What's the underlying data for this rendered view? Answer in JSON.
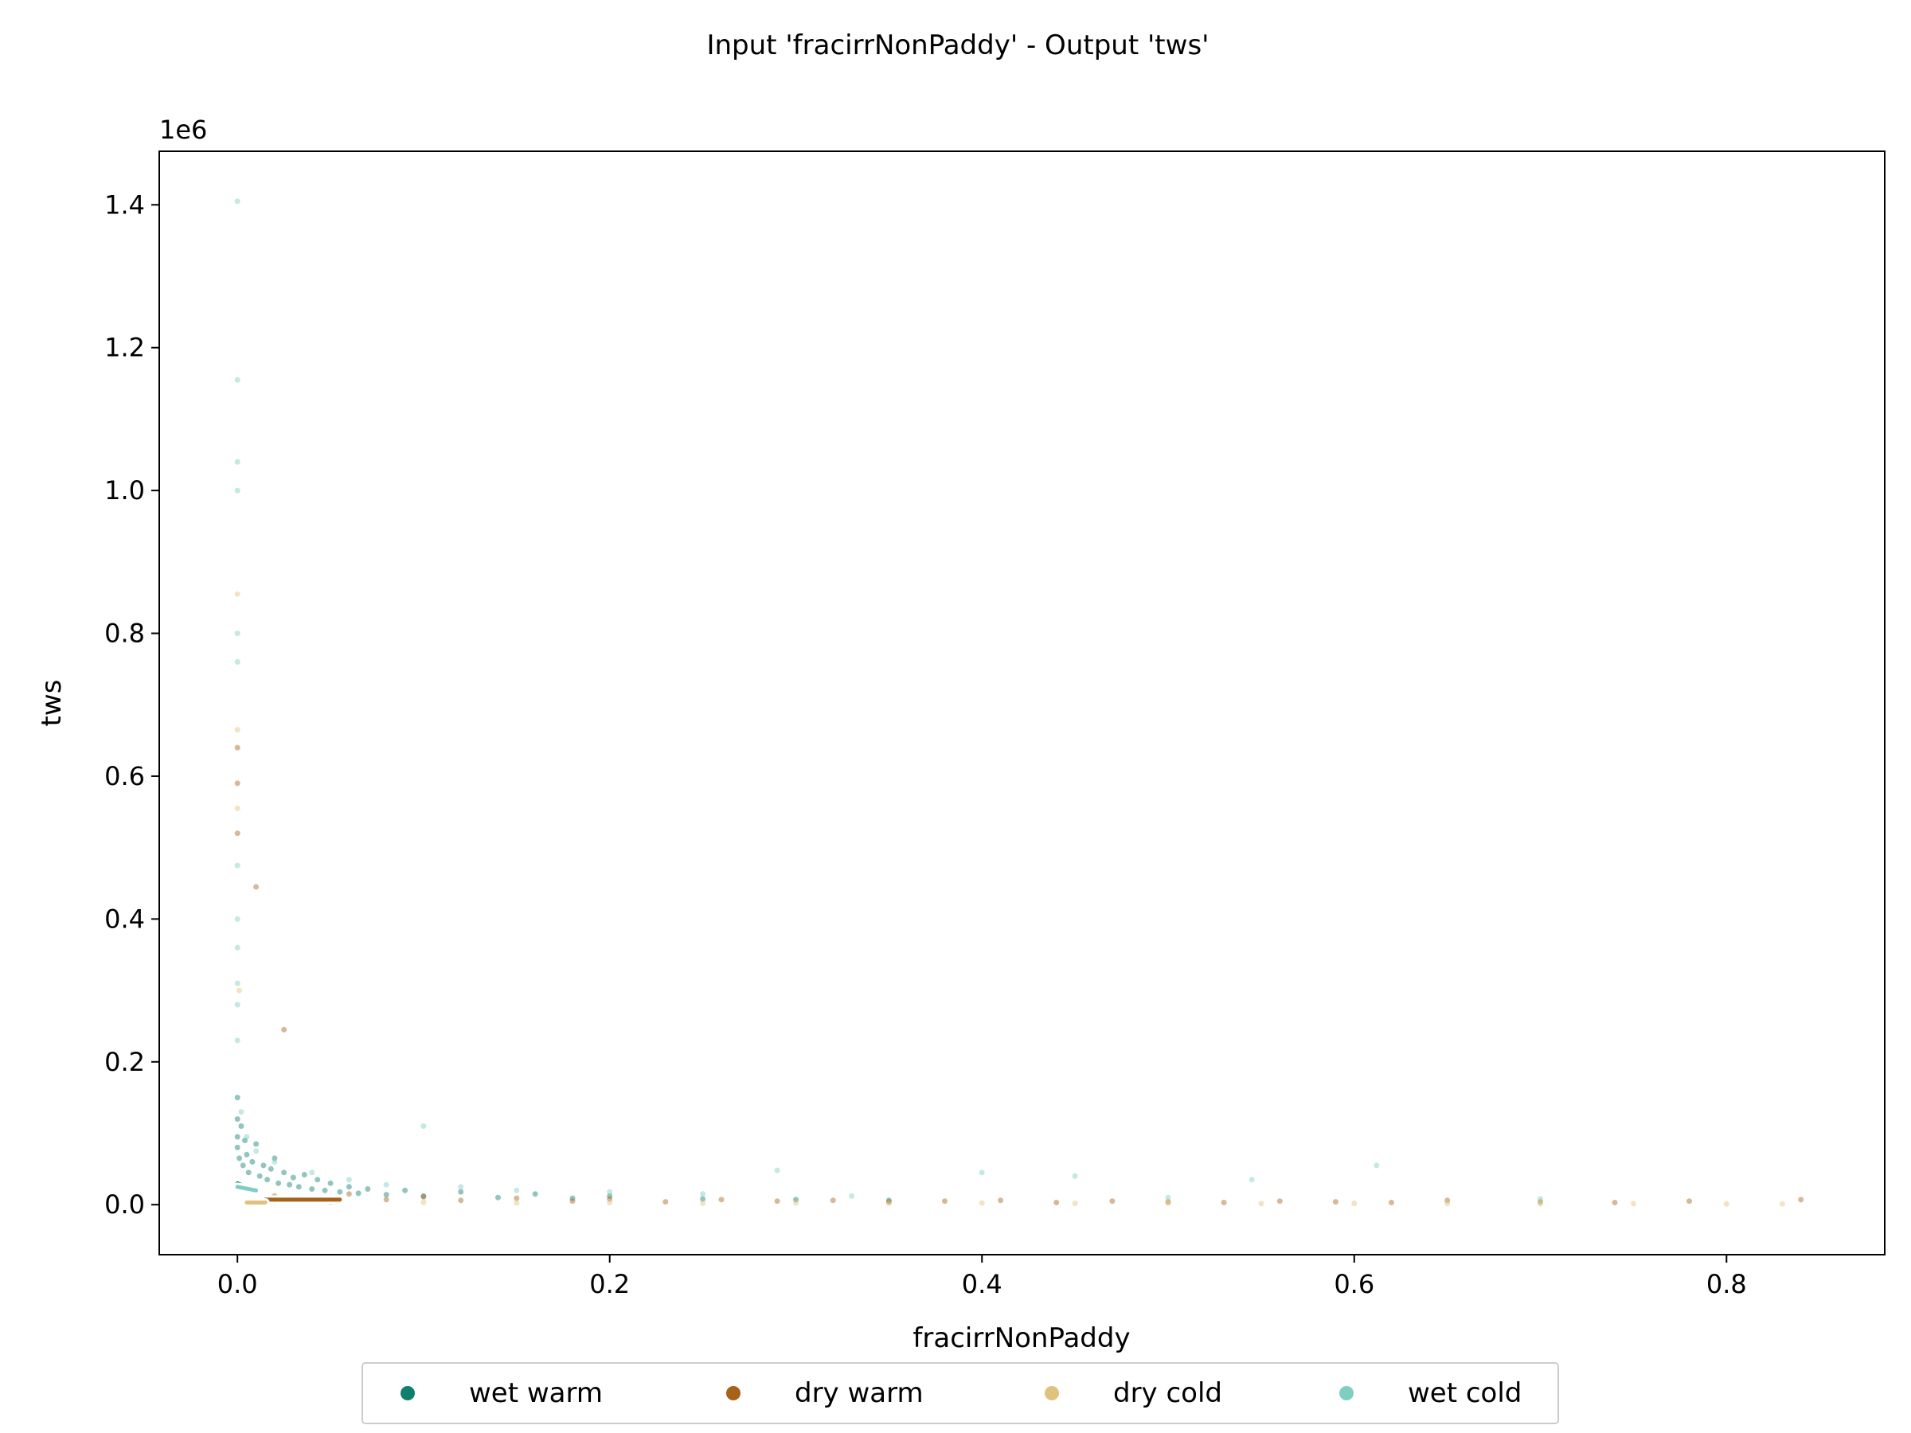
{
  "chart_data": {
    "type": "scatter",
    "title": "Input 'fracirrNonPaddy' - Output 'tws'",
    "xlabel": "fracirrNonPaddy",
    "ylabel": "tws",
    "y_offset_label": "1e6",
    "y_multiplier": 1000000,
    "xlim": [
      -0.042,
      0.885
    ],
    "ylim": [
      -70000,
      1475000
    ],
    "x_ticks": [
      {
        "value": 0.0,
        "label": "0.0"
      },
      {
        "value": 0.2,
        "label": "0.2"
      },
      {
        "value": 0.4,
        "label": "0.4"
      },
      {
        "value": 0.6,
        "label": "0.6"
      },
      {
        "value": 0.8,
        "label": "0.8"
      }
    ],
    "y_ticks": [
      {
        "value": 0,
        "label": "0.0"
      },
      {
        "value": 200000,
        "label": "0.2"
      },
      {
        "value": 400000,
        "label": "0.4"
      },
      {
        "value": 600000,
        "label": "0.6"
      },
      {
        "value": 800000,
        "label": "0.8"
      },
      {
        "value": 1000000,
        "label": "1.0"
      },
      {
        "value": 1200000,
        "label": "1.2"
      },
      {
        "value": 1400000,
        "label": "1.4"
      }
    ],
    "grid": false,
    "legend_position": "bottom-center",
    "series": [
      {
        "name": "wet warm",
        "color": "#0f7f6e",
        "points": [
          [
            0.0,
            150000
          ],
          [
            0.0,
            120000
          ],
          [
            0.0,
            95000
          ],
          [
            0.0,
            80000
          ],
          [
            0.001,
            65000
          ],
          [
            0.002,
            110000
          ],
          [
            0.003,
            55000
          ],
          [
            0.004,
            90000
          ],
          [
            0.005,
            70000
          ],
          [
            0.006,
            45000
          ],
          [
            0.008,
            60000
          ],
          [
            0.01,
            85000
          ],
          [
            0.012,
            40000
          ],
          [
            0.014,
            55000
          ],
          [
            0.016,
            35000
          ],
          [
            0.018,
            50000
          ],
          [
            0.02,
            65000
          ],
          [
            0.022,
            30000
          ],
          [
            0.025,
            45000
          ],
          [
            0.028,
            28000
          ],
          [
            0.03,
            38000
          ],
          [
            0.033,
            25000
          ],
          [
            0.036,
            42000
          ],
          [
            0.04,
            22000
          ],
          [
            0.043,
            35000
          ],
          [
            0.047,
            20000
          ],
          [
            0.05,
            30000
          ],
          [
            0.055,
            18000
          ],
          [
            0.06,
            25000
          ],
          [
            0.065,
            16000
          ],
          [
            0.07,
            22000
          ],
          [
            0.08,
            14000
          ],
          [
            0.09,
            20000
          ],
          [
            0.1,
            12000
          ],
          [
            0.12,
            18000
          ],
          [
            0.14,
            10000
          ],
          [
            0.16,
            15000
          ],
          [
            0.18,
            9000
          ],
          [
            0.2,
            12000
          ],
          [
            0.25,
            8000
          ],
          [
            0.3,
            7000
          ],
          [
            0.35,
            6000
          ]
        ],
        "trend": [
          [
            0.0,
            30000
          ],
          [
            0.005,
            24000
          ],
          [
            0.01,
            22000
          ]
        ]
      },
      {
        "name": "dry warm",
        "color": "#a6611a",
        "points": [
          [
            0.0,
            640000
          ],
          [
            0.0,
            590000
          ],
          [
            0.0,
            520000
          ],
          [
            0.01,
            445000
          ],
          [
            0.025,
            245000
          ],
          [
            0.005,
            20000
          ],
          [
            0.02,
            12000
          ],
          [
            0.04,
            9000
          ],
          [
            0.06,
            15000
          ],
          [
            0.08,
            7000
          ],
          [
            0.1,
            11000
          ],
          [
            0.12,
            6000
          ],
          [
            0.15,
            9000
          ],
          [
            0.18,
            5000
          ],
          [
            0.2,
            8000
          ],
          [
            0.23,
            4000
          ],
          [
            0.26,
            7000
          ],
          [
            0.29,
            5000
          ],
          [
            0.32,
            6000
          ],
          [
            0.35,
            4000
          ],
          [
            0.38,
            5000
          ],
          [
            0.41,
            6000
          ],
          [
            0.44,
            3000
          ],
          [
            0.47,
            5000
          ],
          [
            0.5,
            4000
          ],
          [
            0.53,
            3000
          ],
          [
            0.56,
            5000
          ],
          [
            0.59,
            4000
          ],
          [
            0.62,
            3000
          ],
          [
            0.65,
            6000
          ],
          [
            0.7,
            4000
          ],
          [
            0.74,
            3000
          ],
          [
            0.78,
            5000
          ],
          [
            0.84,
            7000
          ]
        ],
        "trend": [
          [
            0.015,
            7000
          ],
          [
            0.055,
            7000
          ]
        ]
      },
      {
        "name": "dry cold",
        "color": "#dfc27d",
        "points": [
          [
            0.0,
            855000
          ],
          [
            0.0,
            665000
          ],
          [
            0.0,
            555000
          ],
          [
            0.001,
            300000
          ],
          [
            0.005,
            5000
          ],
          [
            0.02,
            4000
          ],
          [
            0.05,
            3000
          ],
          [
            0.1,
            3500
          ],
          [
            0.15,
            2500
          ],
          [
            0.2,
            3000
          ],
          [
            0.25,
            2000
          ],
          [
            0.3,
            2500
          ],
          [
            0.35,
            2000
          ],
          [
            0.4,
            2200
          ],
          [
            0.45,
            1800
          ],
          [
            0.5,
            2000
          ],
          [
            0.55,
            1500
          ],
          [
            0.6,
            1800
          ],
          [
            0.65,
            1500
          ],
          [
            0.7,
            1200
          ],
          [
            0.75,
            1500
          ],
          [
            0.8,
            1200
          ],
          [
            0.83,
            1000
          ]
        ],
        "trend": [
          [
            0.005,
            3000
          ],
          [
            0.015,
            3000
          ]
        ]
      },
      {
        "name": "wet cold",
        "color": "#80cdc1",
        "points": [
          [
            0.0,
            1405000
          ],
          [
            0.0,
            1155000
          ],
          [
            0.0,
            1040000
          ],
          [
            0.0,
            1000000
          ],
          [
            0.0,
            800000
          ],
          [
            0.0,
            760000
          ],
          [
            0.0,
            475000
          ],
          [
            0.0,
            400000
          ],
          [
            0.0,
            360000
          ],
          [
            0.0,
            310000
          ],
          [
            0.0,
            280000
          ],
          [
            0.0,
            230000
          ],
          [
            0.002,
            130000
          ],
          [
            0.005,
            95000
          ],
          [
            0.01,
            75000
          ],
          [
            0.02,
            60000
          ],
          [
            0.04,
            45000
          ],
          [
            0.06,
            35000
          ],
          [
            0.08,
            28000
          ],
          [
            0.1,
            110000
          ],
          [
            0.12,
            25000
          ],
          [
            0.15,
            20000
          ],
          [
            0.2,
            18000
          ],
          [
            0.25,
            15000
          ],
          [
            0.29,
            48000
          ],
          [
            0.33,
            12000
          ],
          [
            0.4,
            45000
          ],
          [
            0.45,
            40000
          ],
          [
            0.5,
            10000
          ],
          [
            0.545,
            35000
          ],
          [
            0.612,
            55000
          ],
          [
            0.7,
            8000
          ]
        ],
        "trend": [
          [
            0.0,
            25000
          ],
          [
            0.01,
            20000
          ]
        ]
      }
    ]
  }
}
